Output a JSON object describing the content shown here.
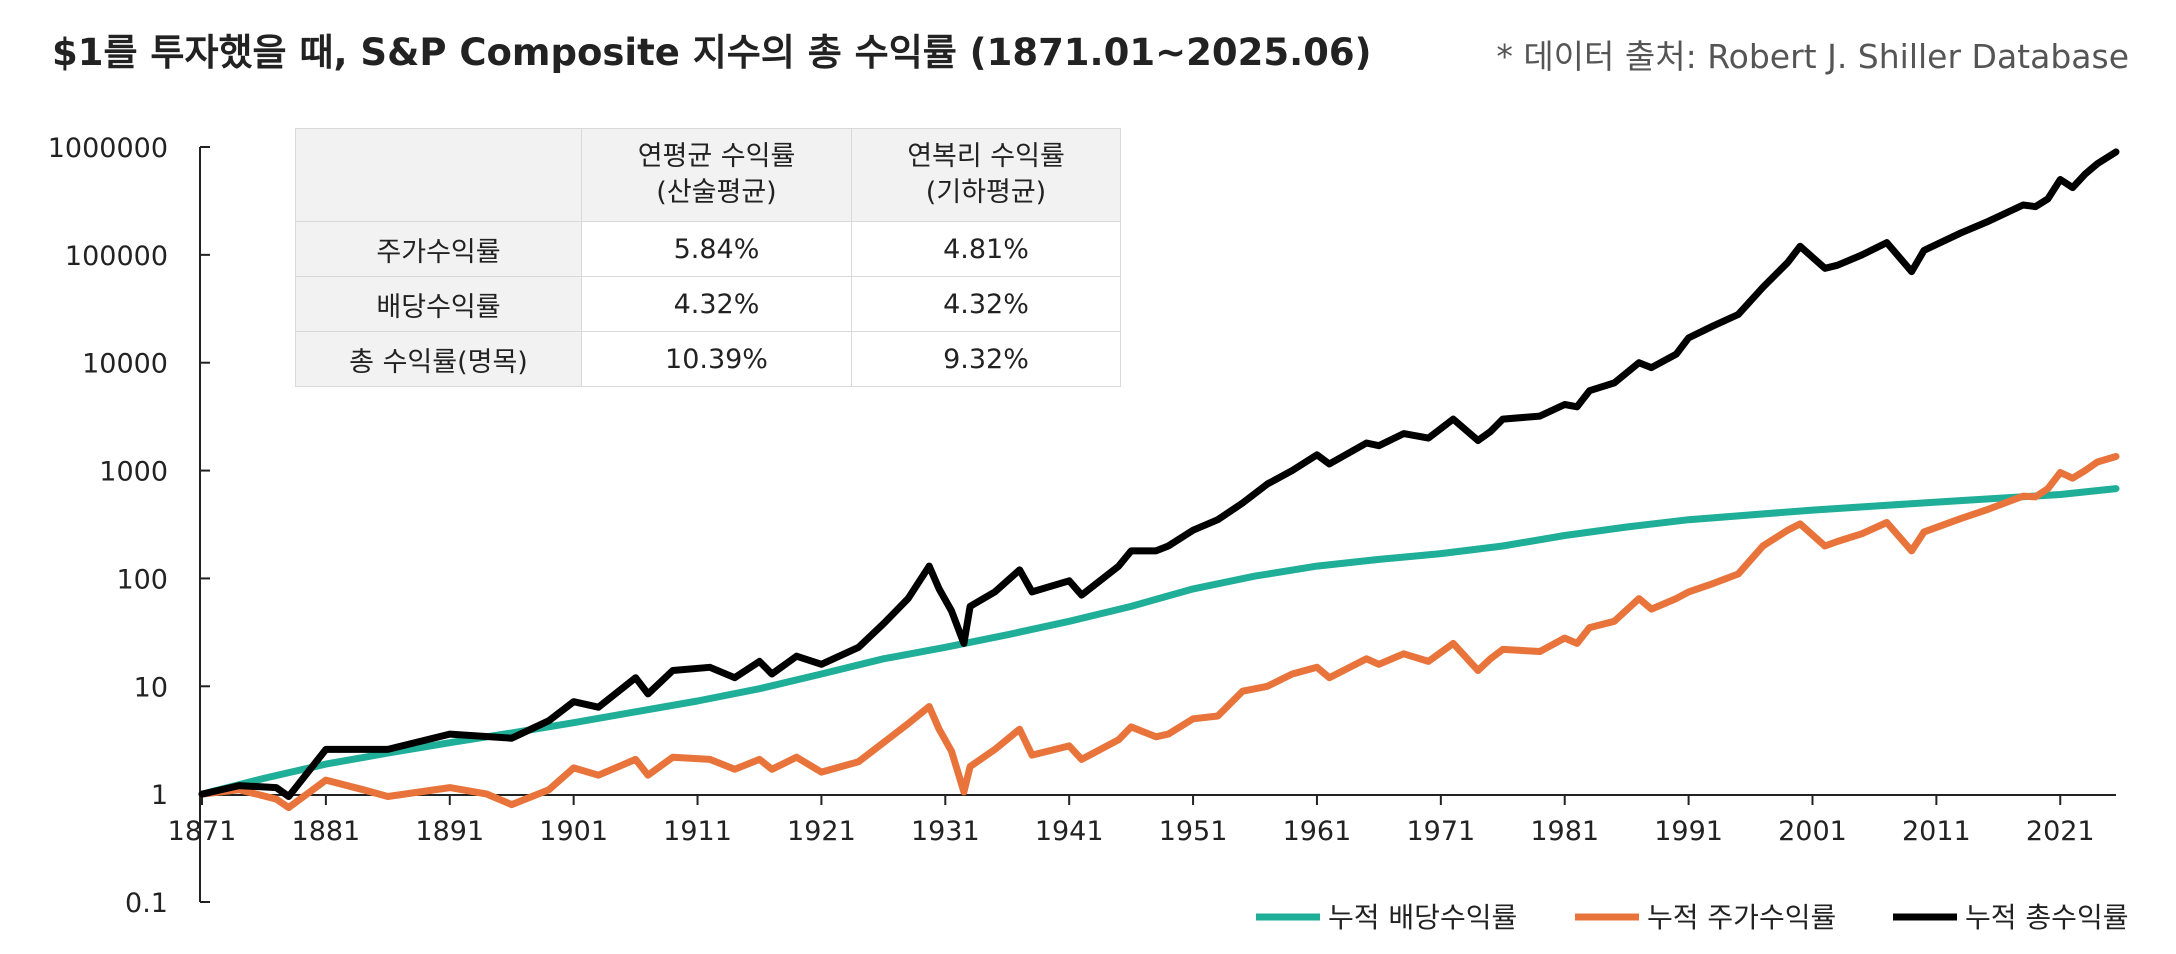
{
  "title": "$1를 투자했을 때, S&P Composite 지수의 총 수익률 (1871.01~2025.06)",
  "source_note": "* 데이터 출처: Robert J. Shiller Database",
  "table": {
    "header": [
      {
        "line1": "",
        "line2": ""
      },
      {
        "line1": "연평균 수익률",
        "line2": "(산술평균)"
      },
      {
        "line1": "연복리 수익률",
        "line2": "(기하평균)"
      }
    ],
    "rows": [
      {
        "label": "주가수익률",
        "arith": "5.84%",
        "geo": "4.81%"
      },
      {
        "label": "배당수익률",
        "arith": "4.32%",
        "geo": "4.32%"
      },
      {
        "label": "총 수익률(명목)",
        "arith": "10.39%",
        "geo": "9.32%"
      }
    ]
  },
  "chart_data": {
    "type": "line",
    "title": "$1를 투자했을 때, S&P Composite 지수의 총 수익률 (1871.01~2025.06)",
    "xlabel": "",
    "ylabel": "",
    "x_range": [
      1871,
      2025.5
    ],
    "y_scale": "log",
    "y_range": [
      0.1,
      1000000
    ],
    "y_ticks": [
      "0.1",
      "1",
      "10",
      "100",
      "1000",
      "10000",
      "100000",
      "1000000"
    ],
    "x_ticks": [
      "1871",
      "1881",
      "1891",
      "1901",
      "1911",
      "1921",
      "1931",
      "1941",
      "1951",
      "1961",
      "1971",
      "1981",
      "1991",
      "2001",
      "2011",
      "2021"
    ],
    "grid": false,
    "legend_position": "bottom-right",
    "series": [
      {
        "name": "누적 배당수익률",
        "color": "#1fae98",
        "x": [
          1871,
          1876,
          1881,
          1886,
          1891,
          1896,
          1901,
          1906,
          1911,
          1916,
          1921,
          1926,
          1931,
          1936,
          1941,
          1946,
          1951,
          1956,
          1961,
          1966,
          1971,
          1976,
          1981,
          1986,
          1991,
          2001,
          2011,
          2021,
          2025.5
        ],
        "values": [
          1,
          1.4,
          1.9,
          2.4,
          3,
          3.7,
          4.6,
          5.8,
          7.3,
          9.5,
          13,
          18,
          23,
          30,
          40,
          55,
          80,
          105,
          130,
          150,
          170,
          200,
          250,
          300,
          350,
          430,
          510,
          600,
          680
        ]
      },
      {
        "name": "누적 주가수익률",
        "color": "#e8743b",
        "x": [
          1871,
          1874,
          1877,
          1878,
          1881,
          1884,
          1886,
          1891,
          1894,
          1896,
          1899,
          1901,
          1903,
          1906,
          1907,
          1909,
          1912,
          1914,
          1916,
          1917,
          1919,
          1921,
          1924,
          1926,
          1928,
          1929.7,
          1930.5,
          1931.5,
          1932.5,
          1933,
          1935,
          1937,
          1938,
          1941,
          1942,
          1945,
          1946,
          1948,
          1949,
          1951,
          1953,
          1955,
          1957,
          1959,
          1961,
          1962,
          1965,
          1966,
          1968,
          1970,
          1972,
          1974,
          1975,
          1976,
          1979,
          1981,
          1982,
          1983,
          1985,
          1987,
          1988,
          1990,
          1991,
          1993,
          1995,
          1997,
          1999,
          2000,
          2002,
          2003,
          2005,
          2007,
          2009,
          2010,
          2013,
          2015,
          2018,
          2019,
          2020,
          2021,
          2022,
          2023,
          2024,
          2025.5
        ],
        "values": [
          1,
          1.1,
          0.9,
          0.75,
          1.35,
          1.1,
          0.95,
          1.15,
          1.0,
          0.8,
          1.1,
          1.75,
          1.5,
          2.1,
          1.5,
          2.2,
          2.1,
          1.7,
          2.1,
          1.7,
          2.2,
          1.6,
          2.0,
          3.0,
          4.5,
          6.5,
          4.0,
          2.5,
          1.05,
          1.8,
          2.6,
          4.0,
          2.3,
          2.8,
          2.1,
          3.2,
          4.2,
          3.4,
          3.6,
          5.0,
          5.3,
          9.0,
          10,
          13,
          15,
          12,
          18,
          16,
          20,
          17,
          25,
          14,
          18,
          22,
          21,
          28,
          25,
          35,
          40,
          65,
          52,
          65,
          75,
          90,
          110,
          200,
          280,
          320,
          200,
          220,
          260,
          330,
          180,
          270,
          360,
          430,
          580,
          570,
          680,
          960,
          850,
          1000,
          1200,
          1350
        ]
      },
      {
        "name": "누적 총수익률",
        "color": "#000000",
        "x": [
          1871,
          1874,
          1877,
          1878,
          1881,
          1886,
          1891,
          1896,
          1899,
          1901,
          1903,
          1906,
          1907,
          1909,
          1912,
          1914,
          1916,
          1917,
          1919,
          1921,
          1924,
          1926,
          1928,
          1929.7,
          1930.5,
          1931.5,
          1932.5,
          1933,
          1935,
          1937,
          1938,
          1941,
          1942,
          1945,
          1946,
          1948,
          1949,
          1951,
          1953,
          1955,
          1957,
          1959,
          1961,
          1962,
          1965,
          1966,
          1968,
          1970,
          1972,
          1974,
          1975,
          1976,
          1979,
          1981,
          1982,
          1983,
          1985,
          1987,
          1988,
          1990,
          1991,
          1993,
          1995,
          1997,
          1999,
          2000,
          2002,
          2003,
          2005,
          2007,
          2009,
          2010,
          2013,
          2015,
          2018,
          2019,
          2020,
          2021,
          2022,
          2023,
          2024,
          2025.5
        ],
        "values": [
          1,
          1.2,
          1.15,
          0.95,
          2.6,
          2.6,
          3.6,
          3.3,
          4.8,
          7.2,
          6.4,
          12,
          8.5,
          14,
          15,
          12,
          17,
          13,
          19,
          16,
          23,
          38,
          65,
          130,
          80,
          50,
          25,
          55,
          75,
          120,
          75,
          95,
          70,
          130,
          180,
          180,
          200,
          280,
          350,
          500,
          750,
          1000,
          1400,
          1150,
          1800,
          1700,
          2200,
          2000,
          3000,
          1900,
          2300,
          3000,
          3200,
          4100,
          3900,
          5500,
          6500,
          10000,
          9000,
          12000,
          17000,
          22000,
          28000,
          50000,
          85000,
          120000,
          75000,
          80000,
          100000,
          130000,
          70000,
          110000,
          160000,
          200000,
          290000,
          280000,
          330000,
          500000,
          420000,
          560000,
          700000,
          900000
        ]
      }
    ]
  }
}
